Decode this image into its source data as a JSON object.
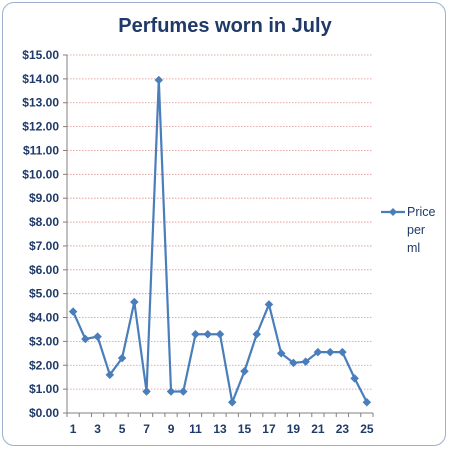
{
  "chart_data": {
    "type": "line",
    "title": "Perfumes worn in July",
    "x": [
      1,
      2,
      3,
      4,
      5,
      6,
      7,
      8,
      9,
      10,
      11,
      12,
      13,
      14,
      15,
      16,
      17,
      18,
      19,
      20,
      21,
      22,
      23,
      24,
      25
    ],
    "x_tick_labels": [
      "1",
      "3",
      "5",
      "7",
      "9",
      "11",
      "13",
      "15",
      "17",
      "19",
      "21",
      "23",
      "25"
    ],
    "y_tick_labels": [
      "$0.00",
      "$1.00",
      "$2.00",
      "$3.00",
      "$4.00",
      "$5.00",
      "$6.00",
      "$7.00",
      "$8.00",
      "$9.00",
      "$10.00",
      "$11.00",
      "$12.00",
      "$13.00",
      "$14.00",
      "$15.00"
    ],
    "ylim": [
      0,
      15
    ],
    "grid": true,
    "legend_position": "right",
    "series": [
      {
        "name": "Price per ml",
        "name_lines": [
          "Price",
          "per",
          "ml"
        ],
        "color": "#4a7ebb",
        "values": [
          4.25,
          3.1,
          3.2,
          1.6,
          2.3,
          4.65,
          0.9,
          13.95,
          0.9,
          0.9,
          3.3,
          3.3,
          3.3,
          0.45,
          1.75,
          3.3,
          4.55,
          2.5,
          2.1,
          2.15,
          2.55,
          2.55,
          2.55,
          1.45,
          0.45
        ]
      }
    ]
  },
  "colors": {
    "title": "#1f3a68",
    "ticks": "#1f3a68",
    "grid": "#e08f8f",
    "axis": "#808080",
    "frame_border": "#9bb1cc"
  }
}
